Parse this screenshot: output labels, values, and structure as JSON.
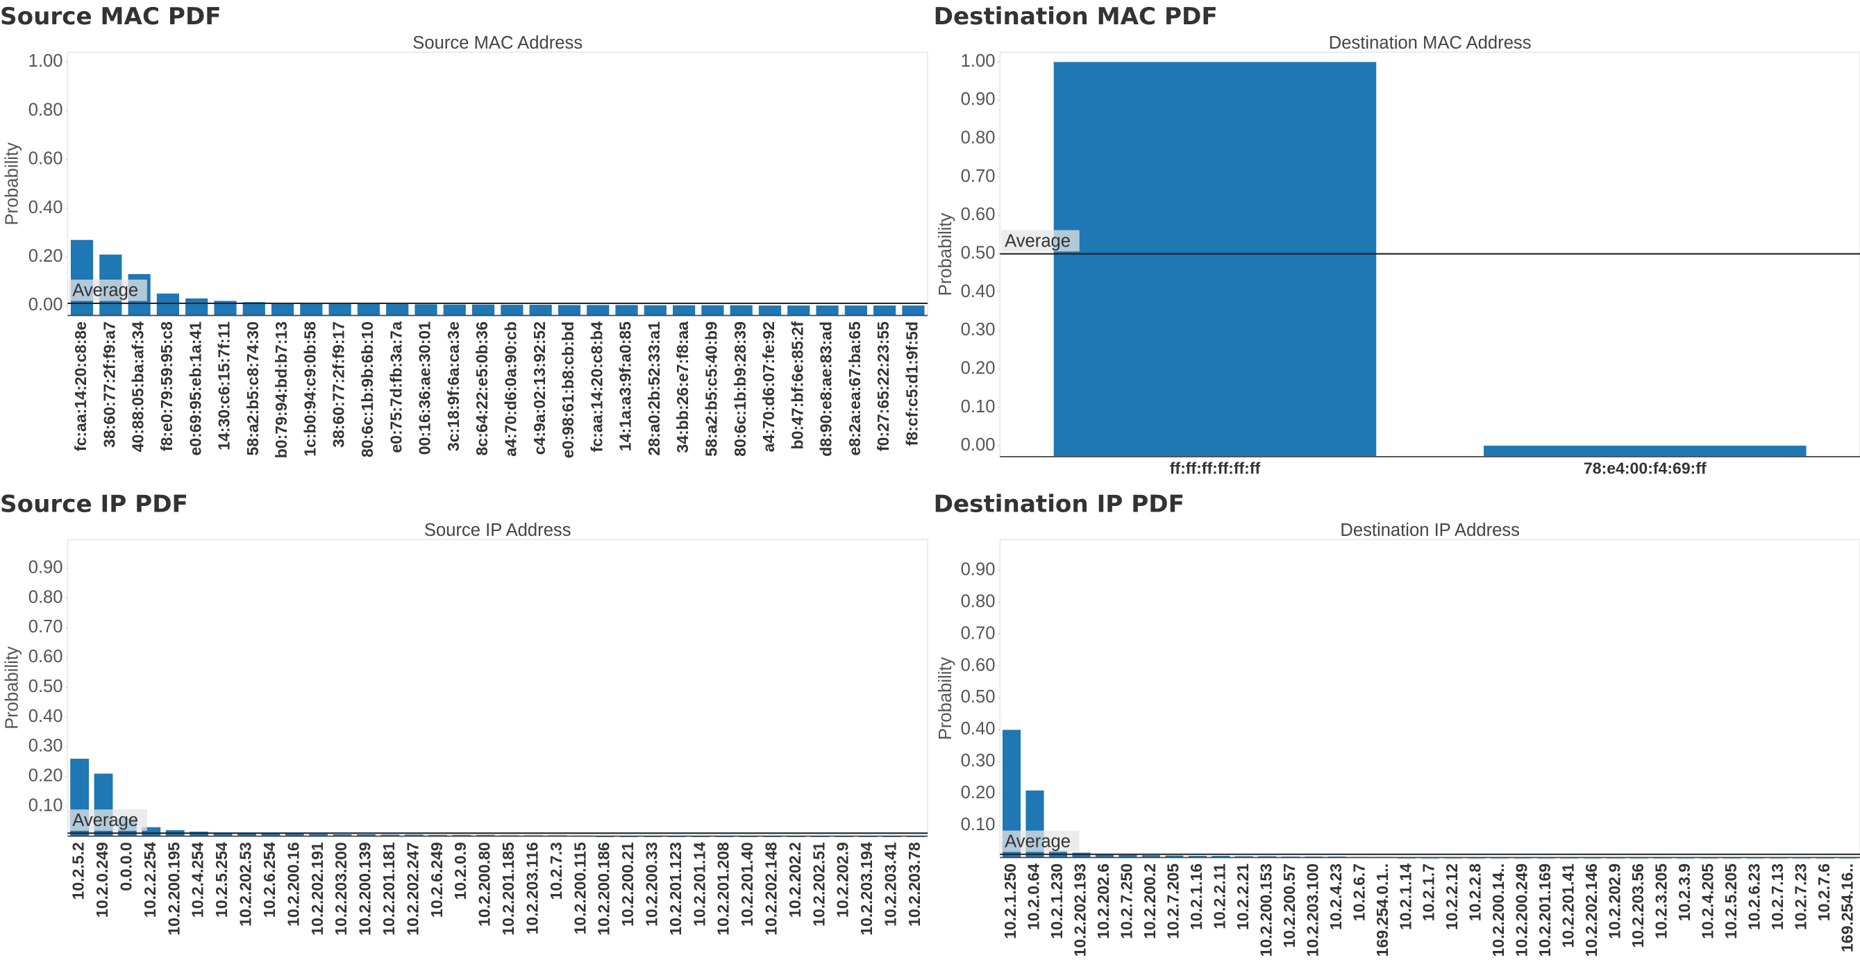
{
  "chart_data": [
    {
      "type": "bar",
      "title": "Source MAC PDF",
      "subtitle": "Source MAC Address",
      "y_label": "Probability",
      "color": "#1f77b4",
      "annotation": "Average",
      "average": 0.01,
      "categories": [
        "fc:aa:14:20:c8:8e",
        "38:60:77:2f:f9:a7",
        "40:88:05:ba:af:34",
        "f8:e0:79:59:95:c8",
        "e0:69:95:eb:1a:41",
        "14:30:c6:15:7f:11",
        "58:a2:b5:c8:74:30",
        "b0:79:94:bd:b7:13",
        "1c:b0:94:c9:0b:58",
        "38:60:77:2f:f9:17",
        "80:6c:1b:9b:6b:10",
        "e0:75:7d:fb:3a:7a",
        "00:16:36:ae:30:01",
        "3c:18:9f:6a:ca:3e",
        "8c:64:22:e5:0b:36",
        "a4:70:d6:0a:90:cb",
        "c4:9a:02:13:92:52",
        "e0:98:61:b8:cb:bd",
        "fc:aa:14:20:c8:b4",
        "14:1a:a3:9f:a0:85",
        "28:a0:2b:52:33:a1",
        "34:bb:26:e7:f8:aa",
        "58:a2:b5:c5:40:b9",
        "80:6c:1b:b9:28:39",
        "a4:70:d6:07:fe:92",
        "b0:47:bf:6e:85:2f",
        "d8:90:e8:ae:83:ad",
        "e8:2a:ea:67:ba:65",
        "f0:27:65:22:23:55",
        "f8:cf:c5:d1:9f:5d"
      ],
      "values": [
        0.27,
        0.21,
        0.13,
        0.05,
        0.03,
        0.02,
        0.015,
        0.012,
        0.01,
        0.009,
        0.008,
        0.007,
        0.006,
        0.005,
        0.005,
        0.004,
        0.004,
        0.003,
        0.003,
        0.003,
        0.002,
        0.002,
        0.002,
        0.002,
        0.001,
        0.001,
        0.001,
        0.001,
        0.001,
        0.001
      ],
      "ylim": [
        -0.04,
        1.04
      ],
      "yticks": [
        {
          "value": 0,
          "label": "0.00"
        },
        {
          "value": 0.2,
          "label": "0.20"
        },
        {
          "value": 0.4,
          "label": "0.40"
        },
        {
          "value": 0.6,
          "label": "0.60"
        },
        {
          "value": 0.8,
          "label": "0.80"
        },
        {
          "value": 1,
          "label": "1.00"
        }
      ]
    },
    {
      "type": "bar",
      "title": "Destination MAC PDF",
      "subtitle": "Destination MAC Address",
      "y_label": "Probability",
      "color": "#1f77b4",
      "annotation": "Average",
      "average": 0.5,
      "categories": [
        "ff:ff:ff:ff:ff:ff",
        "78:e4:00:f4:69:ff"
      ],
      "values": [
        0.9995,
        0.0005
      ],
      "ylim": [
        -0.028,
        1.025
      ],
      "yticks": [
        {
          "value": 0,
          "label": "0.00"
        },
        {
          "value": 0.1,
          "label": "0.10"
        },
        {
          "value": 0.2,
          "label": "0.20"
        },
        {
          "value": 0.3,
          "label": "0.30"
        },
        {
          "value": 0.4,
          "label": "0.40"
        },
        {
          "value": 0.5,
          "label": "0.50"
        },
        {
          "value": 0.6,
          "label": "0.60"
        },
        {
          "value": 0.7,
          "label": "0.70"
        },
        {
          "value": 0.8,
          "label": "0.80"
        },
        {
          "value": 0.9,
          "label": "0.90"
        },
        {
          "value": 1,
          "label": "1.00"
        }
      ]
    },
    {
      "type": "bar",
      "title": "Source IP PDF",
      "subtitle": "Source IP Address",
      "y_label": "Probability",
      "color": "#1f77b4",
      "annotation": "Average",
      "average": 0.01,
      "categories": [
        "10.2.5.2",
        "10.2.0.249",
        "0.0.0.0",
        "10.2.2.254",
        "10.2.200.195",
        "10.2.4.254",
        "10.2.5.254",
        "10.2.202.53",
        "10.2.6.254",
        "10.2.200.16",
        "10.2.202.191",
        "10.2.203.200",
        "10.2.200.139",
        "10.2.201.181",
        "10.2.202.247",
        "10.2.6.249",
        "10.2.0.9",
        "10.2.200.80",
        "10.2.201.185",
        "10.2.203.116",
        "10.2.7.3",
        "10.2.200.115",
        "10.2.200.186",
        "10.2.200.21",
        "10.2.200.33",
        "10.2.201.123",
        "10.2.201.14",
        "10.2.201.208",
        "10.2.201.40",
        "10.2.202.148",
        "10.2.202.2",
        "10.2.202.51",
        "10.2.202.9",
        "10.2.203.194",
        "10.2.203.41",
        "10.2.203.78"
      ],
      "values": [
        0.26,
        0.21,
        0.06,
        0.03,
        0.02,
        0.015,
        0.012,
        0.01,
        0.009,
        0.008,
        0.007,
        0.006,
        0.006,
        0.005,
        0.005,
        0.004,
        0.004,
        0.004,
        0.003,
        0.003,
        0.003,
        0.002,
        0,
        0,
        0,
        0,
        0,
        0,
        0,
        0,
        0,
        0,
        0,
        0,
        0,
        0
      ],
      "ylim": [
        0,
        0.996
      ],
      "yticks": [
        {
          "value": 0.1,
          "label": "0.10"
        },
        {
          "value": 0.2,
          "label": "0.20"
        },
        {
          "value": 0.3,
          "label": "0.30"
        },
        {
          "value": 0.4,
          "label": "0.40"
        },
        {
          "value": 0.5,
          "label": "0.50"
        },
        {
          "value": 0.6,
          "label": "0.60"
        },
        {
          "value": 0.7,
          "label": "0.70"
        },
        {
          "value": 0.8,
          "label": "0.80"
        },
        {
          "value": 0.9,
          "label": "0.90"
        }
      ]
    },
    {
      "type": "bar",
      "title": "Destination IP PDF",
      "subtitle": "Destination IP Address",
      "y_label": "Probability",
      "color": "#1f77b4",
      "annotation": "Average",
      "average": 0.01,
      "categories": [
        "10.2.1.250",
        "10.2.0.64",
        "10.2.1.230",
        "10.2.202.193",
        "10.2.202.6",
        "10.2.7.250",
        "10.2.200.2",
        "10.2.7.205",
        "10.2.1.16",
        "10.2.2.11",
        "10.2.2.21",
        "10.2.200.153",
        "10.2.200.57",
        "10.2.203.100",
        "10.2.4.23",
        "10.2.6.7",
        "169.254.0.1..",
        "10.2.1.14",
        "10.2.1.7",
        "10.2.2.12",
        "10.2.2.8",
        "10.2.200.14..",
        "10.2.200.249",
        "10.2.201.169",
        "10.2.201.41",
        "10.2.202.146",
        "10.2.202.9",
        "10.2.203.56",
        "10.2.3.205",
        "10.2.3.9",
        "10.2.4.205",
        "10.2.5.205",
        "10.2.6.23",
        "10.2.7.13",
        "10.2.7.23",
        "10.2.7.6",
        "169.254.16.."
      ],
      "values": [
        0.4,
        0.21,
        0.02,
        0.015,
        0.01,
        0.008,
        0.007,
        0.006,
        0.005,
        0.005,
        0.004,
        0.004,
        0.003,
        0.003,
        0.003,
        0.002,
        0.002,
        0,
        0,
        0,
        0,
        0,
        0,
        0,
        0,
        0,
        0,
        0,
        0,
        0,
        0,
        0,
        0,
        0,
        0,
        0,
        0
      ],
      "ylim": [
        0,
        0.996
      ],
      "yticks": [
        {
          "value": 0.1,
          "label": "0.10"
        },
        {
          "value": 0.2,
          "label": "0.20"
        },
        {
          "value": 0.3,
          "label": "0.30"
        },
        {
          "value": 0.4,
          "label": "0.40"
        },
        {
          "value": 0.5,
          "label": "0.50"
        },
        {
          "value": 0.6,
          "label": "0.60"
        },
        {
          "value": 0.7,
          "label": "0.70"
        },
        {
          "value": 0.8,
          "label": "0.80"
        },
        {
          "value": 0.9,
          "label": "0.90"
        }
      ]
    }
  ]
}
